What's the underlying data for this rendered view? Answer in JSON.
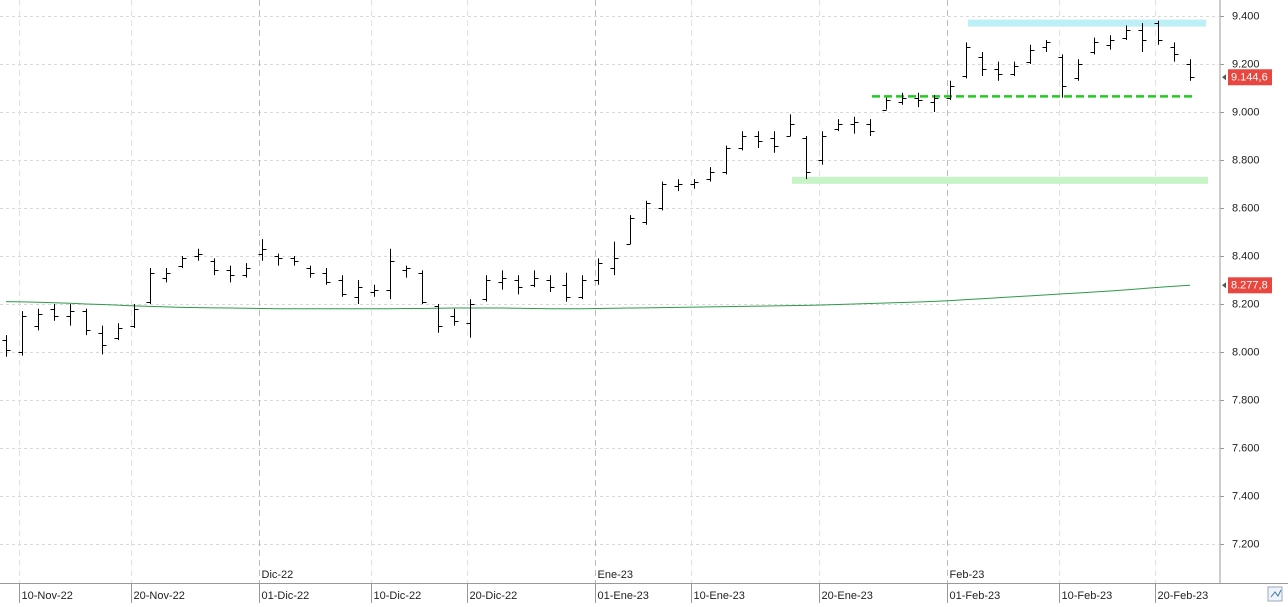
{
  "chart_data": {
    "type": "ohlc",
    "color": "#000000",
    "categories": [
      null,
      "10-Nov-22",
      null,
      null,
      null,
      null,
      null,
      null,
      "20-Nov-22",
      null,
      null,
      null,
      null,
      null,
      null,
      null,
      "01-Dic-22",
      null,
      null,
      null,
      null,
      null,
      null,
      "10-Dic-22",
      null,
      null,
      null,
      null,
      null,
      "20-Dic-22",
      null,
      null,
      null,
      null,
      null,
      null,
      null,
      "01-Ene-23",
      null,
      null,
      null,
      null,
      null,
      "10-Ene-23",
      null,
      null,
      null,
      null,
      null,
      null,
      null,
      "20-Ene-23",
      null,
      null,
      null,
      null,
      null,
      null,
      null,
      "01-Feb-23",
      null,
      null,
      null,
      null,
      null,
      null,
      "10-Feb-23",
      null,
      null,
      null,
      null,
      null,
      "20-Feb-23",
      null,
      null
    ],
    "month_labels": [
      null,
      null,
      null,
      null,
      null,
      null,
      null,
      null,
      null,
      null,
      null,
      null,
      null,
      null,
      null,
      null,
      "Dic-22",
      null,
      null,
      null,
      null,
      null,
      null,
      null,
      null,
      null,
      null,
      null,
      null,
      null,
      null,
      null,
      null,
      null,
      null,
      null,
      null,
      "Ene-23",
      null,
      null,
      null,
      null,
      null,
      null,
      null,
      null,
      null,
      null,
      null,
      null,
      null,
      null,
      null,
      null,
      null,
      null,
      null,
      null,
      null,
      "Feb-23",
      null,
      null,
      null,
      null,
      null,
      null,
      null,
      null,
      null,
      null,
      null,
      null,
      null,
      null,
      null
    ],
    "open": [
      8050,
      8000,
      8110,
      8180,
      8150,
      8170,
      8080,
      8060,
      8110,
      8210,
      8310,
      8360,
      8400,
      8380,
      8340,
      8320,
      8410,
      8400,
      8390,
      8350,
      8330,
      8300,
      8230,
      8250,
      8260,
      8340,
      8330,
      8190,
      8150,
      8120,
      8220,
      8290,
      8300,
      8280,
      8300,
      8280,
      8230,
      8300,
      8350,
      8450,
      8540,
      8600,
      8690,
      8700,
      8720,
      8750,
      8850,
      8900,
      8890,
      8900,
      8890,
      8800,
      8930,
      8950,
      8950,
      9010,
      9040,
      9060,
      9040,
      9060,
      9150,
      9230,
      9180,
      9160,
      9210,
      9270,
      9230,
      9140,
      9250,
      9280,
      9310,
      9340,
      9370,
      9270,
      9200
    ],
    "high": [
      8070,
      8170,
      8180,
      8200,
      8200,
      8180,
      8110,
      8120,
      8200,
      8350,
      8350,
      8400,
      8430,
      8390,
      8360,
      8370,
      8470,
      8410,
      8400,
      8360,
      8350,
      8320,
      8300,
      8280,
      8430,
      8360,
      8340,
      8200,
      8180,
      8220,
      8320,
      8340,
      8320,
      8340,
      8320,
      8330,
      8320,
      8390,
      8460,
      8570,
      8630,
      8710,
      8720,
      8720,
      8770,
      8860,
      8920,
      8920,
      8920,
      8990,
      8900,
      8920,
      8970,
      8980,
      8970,
      9060,
      9080,
      9080,
      9070,
      9130,
      9290,
      9250,
      9210,
      9210,
      9280,
      9300,
      9240,
      9220,
      9310,
      9320,
      9360,
      9370,
      9380,
      9290,
      9220
    ],
    "low": [
      7980,
      7985,
      8090,
      8130,
      8110,
      8070,
      7990,
      8050,
      8100,
      8200,
      8290,
      8350,
      8380,
      8320,
      8290,
      8310,
      8380,
      8360,
      8360,
      8310,
      8280,
      8230,
      8200,
      8230,
      8220,
      8310,
      8200,
      8080,
      8110,
      8060,
      8210,
      8260,
      8240,
      8270,
      8250,
      8210,
      8220,
      8280,
      8320,
      8450,
      8530,
      8590,
      8670,
      8680,
      8710,
      8740,
      8840,
      8850,
      8830,
      8900,
      8720,
      8780,
      8920,
      8910,
      8900,
      9010,
      9030,
      9020,
      9000,
      9050,
      9140,
      9150,
      9130,
      9150,
      9200,
      9250,
      9060,
      9130,
      9240,
      9260,
      9300,
      9250,
      9280,
      9210,
      9130
    ],
    "close": [
      8010,
      8150,
      8160,
      8150,
      8170,
      8090,
      8030,
      8100,
      8180,
      8330,
      8330,
      8390,
      8410,
      8340,
      8320,
      8350,
      8430,
      8390,
      8380,
      8330,
      8290,
      8240,
      8270,
      8260,
      8380,
      8350,
      8210,
      8110,
      8130,
      8200,
      8300,
      8310,
      8270,
      8310,
      8270,
      8230,
      8300,
      8370,
      8390,
      8560,
      8620,
      8700,
      8700,
      8710,
      8750,
      8850,
      8900,
      8880,
      8860,
      8950,
      8750,
      8900,
      8950,
      8960,
      8920,
      9050,
      9060,
      9050,
      9060,
      9110,
      9270,
      9180,
      9160,
      9190,
      9260,
      9290,
      9110,
      9200,
      9290,
      9300,
      9340,
      9300,
      9300,
      9240,
      9144.6
    ],
    "ma": {
      "color": "#2e9a4a",
      "values": [
        8210,
        8209,
        8207,
        8205,
        8203,
        8200,
        8198,
        8195,
        8192,
        8190,
        8188,
        8186,
        8185,
        8184,
        8183,
        8182,
        8181,
        8180,
        8180,
        8180,
        8180,
        8180,
        8180,
        8180,
        8180,
        8181,
        8181,
        8182,
        8183,
        8183,
        8183,
        8183,
        8182,
        8181,
        8180,
        8180,
        8180,
        8181,
        8182,
        8183,
        8184,
        8185,
        8186,
        8187,
        8188,
        8189,
        8190,
        8191,
        8192,
        8193,
        8194,
        8196,
        8198,
        8200,
        8202,
        8204,
        8206,
        8208,
        8211,
        8214,
        8218,
        8222,
        8226,
        8230,
        8234,
        8238,
        8242,
        8246,
        8250,
        8254,
        8259,
        8264,
        8269,
        8274,
        8277.8
      ]
    },
    "levels": [
      {
        "value": 9370,
        "color": "#bdeff7",
        "style": "band"
      },
      {
        "value": 9065,
        "color": "#22cc22",
        "style": "dashed"
      },
      {
        "value": 8715,
        "color": "#c8f5c8",
        "style": "band"
      }
    ],
    "price_labels": [
      {
        "value": 9144.6,
        "label": "9.144,6",
        "color": "#e8473f"
      },
      {
        "value": 8277.8,
        "label": "8.277,8",
        "color": "#e8473f"
      }
    ],
    "ylim": [
      7037.5,
      9466.5
    ],
    "yticks": [
      {
        "value": 7200,
        "label": "7.200"
      },
      {
        "value": 7400,
        "label": "7.400"
      },
      {
        "value": 7600,
        "label": "7.600"
      },
      {
        "value": 7800,
        "label": "7.800"
      },
      {
        "value": 8000,
        "label": "8.000"
      },
      {
        "value": 8200,
        "label": "8.200"
      },
      {
        "value": 8400,
        "label": "8.400"
      },
      {
        "value": 8600,
        "label": "8.600"
      },
      {
        "value": 8800,
        "label": "8.800"
      },
      {
        "value": 9000,
        "label": "9.000"
      },
      {
        "value": 9200,
        "label": "9.200"
      },
      {
        "value": 9400,
        "label": "9.400"
      }
    ],
    "grid": true
  }
}
